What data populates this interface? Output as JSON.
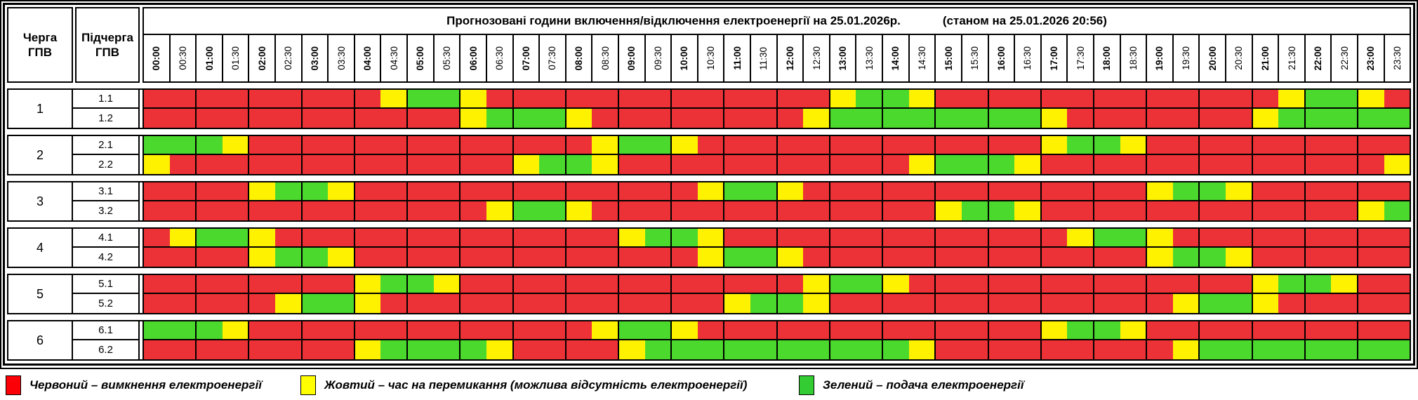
{
  "title": {
    "main": "Прогнозовані години включення/відключення електроенергії на 25.01.2026р.",
    "status": "(станом на 25.01.2026 20:56)"
  },
  "corner": {
    "queue_header": "Черга\nГПВ",
    "subqueue_header": "Підчерга\nГПВ"
  },
  "colors": {
    "R": "#ED3237",
    "Y": "#FFF200",
    "G": "#4BD92E"
  },
  "chart_data": {
    "type": "heatmap",
    "title": "Прогнозовані години включення/відключення електроенергії на 25.01.2026р. (станом на 25.01.2026 20:56)",
    "x": [
      "00:00",
      "00:30",
      "01:00",
      "01:30",
      "02:00",
      "02:30",
      "03:00",
      "03:30",
      "04:00",
      "04:30",
      "05:00",
      "05:30",
      "06:00",
      "06:30",
      "07:00",
      "07:30",
      "08:00",
      "08:30",
      "09:00",
      "09:30",
      "10:00",
      "10:30",
      "11:00",
      "11:30",
      "12:00",
      "12:30",
      "13:00",
      "13:30",
      "14:00",
      "14:30",
      "15:00",
      "15:30",
      "16:00",
      "16:30",
      "17:00",
      "17:30",
      "18:00",
      "18:30",
      "19:00",
      "19:30",
      "20:00",
      "20:30",
      "21:00",
      "21:30",
      "22:00",
      "22:30",
      "23:00",
      "23:30"
    ],
    "status_codes": {
      "R": "вимкнення електроенергії",
      "Y": "час на перемикання (можлива відсутність електроенергії)",
      "G": "подача електроенергії"
    },
    "legend_position": "bottom",
    "groups": [
      {
        "queue": "1",
        "rows": [
          {
            "label": "1.1",
            "pattern": "RRRRRRRRRYGGYRRRRRRRRRRRRRYGGYRRRRRRRRRRRRRYGGYR"
          },
          {
            "label": "1.2",
            "pattern": "RRRRRRRRRRRRYGGGYRRRRRRRRYGGGGGGGGYRRRRRRRYGGGGG"
          }
        ]
      },
      {
        "queue": "2",
        "rows": [
          {
            "label": "2.1",
            "pattern": "GGGYRRRRRRRRRRRRRYGGYRRRRRRRRRRRRRYGGYRRRRRRRRRR"
          },
          {
            "label": "2.2",
            "pattern": "YRRRRRRRRRRRRRYGGYRRRRRRRRRRRYGGGYRRRRRRRRRRRRRY"
          }
        ]
      },
      {
        "queue": "3",
        "rows": [
          {
            "label": "3.1",
            "pattern": "RRRRYGGYRRRRRRRRRRRRRYGGYRRRRRRRRRRRRRYGGYRRRRRR"
          },
          {
            "label": "3.2",
            "pattern": "RRRRRRRRRRRRRYGGYRRRRRRRRRRRRRYGGYRRRRRRRRRRRRYG"
          }
        ]
      },
      {
        "queue": "4",
        "rows": [
          {
            "label": "4.1",
            "pattern": "RYGGYRRRRRRRRRRRRRYGGYRRRRRRRRRRRRRYGGYRRRRRRRRR"
          },
          {
            "label": "4.2",
            "pattern": "RRRRYGGYRRRRRRRRRRRRRYGGYRRRRRRRRRRRRRYGGYRRRRRR"
          }
        ]
      },
      {
        "queue": "5",
        "rows": [
          {
            "label": "5.1",
            "pattern": "RRRRRRRRYGGYRRRRRRRRRRRRRYGGYRRRRRRRRRRRRRYGGYRR"
          },
          {
            "label": "5.2",
            "pattern": "RRRRRYGGYRRRRRRRRRRRRRYGGYRRRRRRRRRRRRRYGGYRRRRR"
          }
        ]
      },
      {
        "queue": "6",
        "rows": [
          {
            "label": "6.1",
            "pattern": "GGGYRRRRRRRRRRRRRYGGYRRRRRRRRRRRRRYGGYRRRRRRRRRR"
          },
          {
            "label": "6.2",
            "pattern": "RRRRRRRRYGGGGYRRRRYGGGGGGGGGGYRRRRRRRRRYGGGGGGGG"
          }
        ]
      }
    ]
  },
  "legend": {
    "items": [
      {
        "code": "R",
        "color": "#FB0007",
        "label": "Червоний – вимкнення електроенергії"
      },
      {
        "code": "Y",
        "color": "#FFFF00",
        "label": "Жовтий – час на перемикання (можлива відсутність електроенергії)"
      },
      {
        "code": "G",
        "color": "#33CC33",
        "label": "Зелений – подача електроенергії"
      }
    ]
  }
}
